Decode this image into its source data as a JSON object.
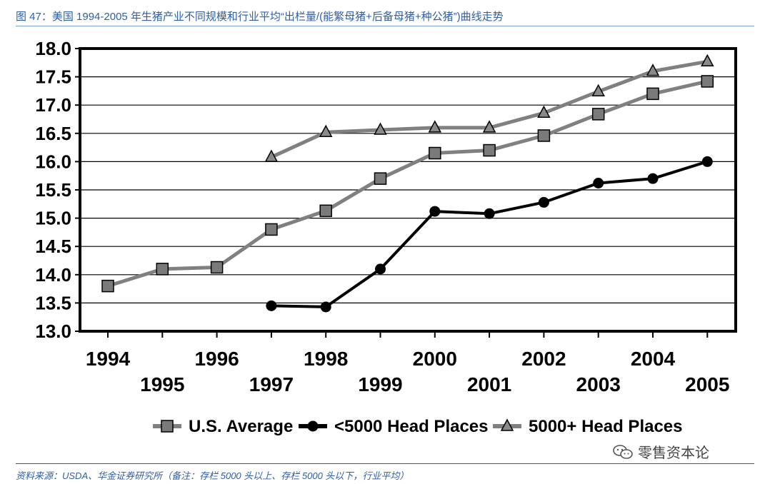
{
  "figure_title": "图 47：美国 1994-2005 年生猪产业不同规模和行业平均“出栏量/(能繁母猪+后备母猪+种公猪”)曲线走势",
  "source_note": "资料来源：USDA、华金证券研究所（备注：存栏 5000 头以上、存栏 5000 头以下，行业平均）",
  "watermark": "零售资本论",
  "colors": {
    "title_blue": "#2f5ea8",
    "gray_series": "#808080",
    "black_series": "#000000"
  },
  "chart_data": {
    "type": "line",
    "title": "",
    "xlabel": "",
    "ylabel": "",
    "categories": [
      "1994",
      "1995",
      "1996",
      "1997",
      "1998",
      "1999",
      "2000",
      "2001",
      "2002",
      "2003",
      "2004",
      "2005"
    ],
    "ylim": [
      13.0,
      18.0
    ],
    "yticks": [
      "13.0",
      "13.5",
      "14.0",
      "14.5",
      "15.0",
      "15.5",
      "16.0",
      "16.5",
      "17.0",
      "17.5",
      "18.0"
    ],
    "grid": true,
    "legend_position": "bottom",
    "series": [
      {
        "name": "U.S. Average",
        "marker": "square",
        "color": "#808080",
        "values": [
          13.8,
          14.1,
          14.13,
          14.8,
          15.13,
          15.7,
          16.15,
          16.2,
          16.46,
          16.84,
          17.2,
          17.42
        ]
      },
      {
        "name": "<5000 Head Places",
        "marker": "circle",
        "color": "#000000",
        "values": [
          null,
          null,
          null,
          13.45,
          13.43,
          14.1,
          15.12,
          15.08,
          15.28,
          15.62,
          15.7,
          16.0
        ]
      },
      {
        "name": "5000+ Head Places",
        "marker": "triangle",
        "color": "#808080",
        "values": [
          null,
          null,
          null,
          16.08,
          16.52,
          16.56,
          16.6,
          16.6,
          16.86,
          17.24,
          17.6,
          17.77
        ]
      }
    ]
  }
}
